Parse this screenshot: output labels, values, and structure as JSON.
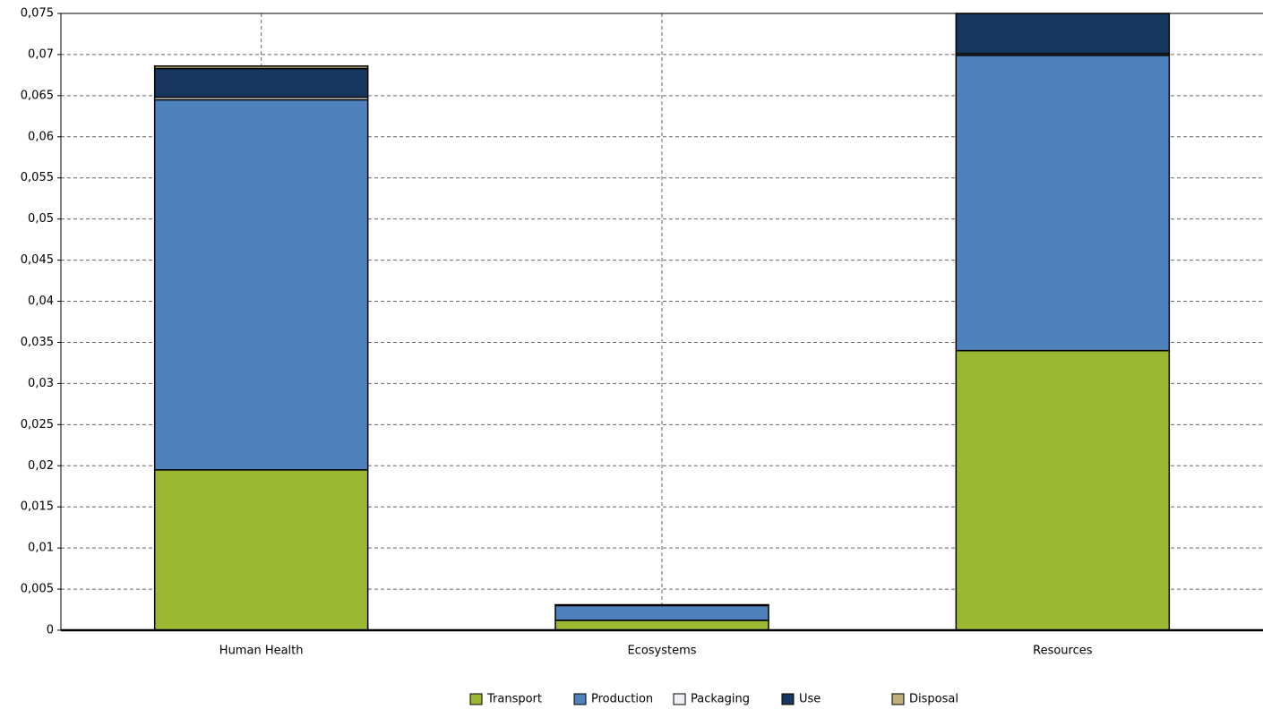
{
  "chart_data": {
    "type": "stacked_bar",
    "categories": [
      "Human Health",
      "Ecosystems",
      "Resources"
    ],
    "series": [
      {
        "name": "Transport",
        "color": "#9ab832",
        "values": [
          0.0195,
          0.0012,
          0.034
        ]
      },
      {
        "name": "Production",
        "color": "#4f81bd",
        "values": [
          0.045,
          0.0018,
          0.0359
        ]
      },
      {
        "name": "Packaging",
        "color": "#eef0f5",
        "values": [
          0.0003,
          0,
          0.0002
        ]
      },
      {
        "name": "Use",
        "color": "#17375e",
        "values": [
          0.0035,
          0.0001,
          0.0049
        ]
      },
      {
        "name": "Disposal",
        "color": "#bfae7a",
        "values": [
          0.0003,
          0,
          0
        ]
      }
    ],
    "ylim": [
      0,
      0.075
    ],
    "yticks": [
      0,
      {
        "value": 0.005,
        "label": "0,005"
      },
      {
        "value": 0.01,
        "label": "0,01"
      },
      {
        "value": 0.015,
        "label": "0,015"
      },
      {
        "value": 0.02,
        "label": "0,02"
      },
      {
        "value": 0.025,
        "label": "0,025"
      },
      {
        "value": 0.03,
        "label": "0,03"
      },
      {
        "value": 0.035,
        "label": "0,035"
      },
      {
        "value": 0.04,
        "label": "0,04"
      },
      {
        "value": 0.045,
        "label": "0,045"
      },
      {
        "value": 0.05,
        "label": "0,05"
      },
      {
        "value": 0.055,
        "label": "0,055"
      },
      {
        "value": 0.06,
        "label": "0,06"
      },
      {
        "value": 0.065,
        "label": "0,065"
      },
      {
        "value": 0.07,
        "label": "0,07"
      },
      {
        "value": 0.075,
        "label": "0,075"
      }
    ],
    "grid": true,
    "legend": "bottom"
  }
}
